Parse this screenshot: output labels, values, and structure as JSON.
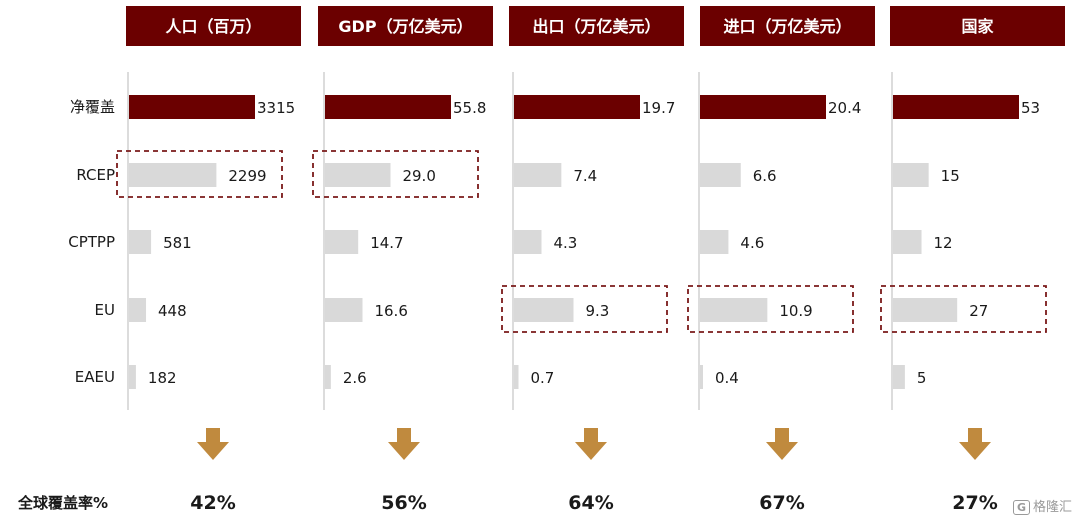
{
  "chart_data": {
    "type": "bar",
    "orientation": "horizontal",
    "categories": [
      "净覆盖",
      "RCEP",
      "CPTPP",
      "EU",
      "EAEU"
    ],
    "highlight_category": "净覆盖",
    "panels": [
      {
        "name": "人口（百万）",
        "values": [
          3315,
          2299,
          581,
          448,
          182
        ],
        "labels": [
          "3315",
          "2299",
          "581",
          "448",
          "182"
        ],
        "boxed": [
          1
        ]
      },
      {
        "name": "GDP（万亿美元）",
        "values": [
          55.8,
          29.0,
          14.7,
          16.6,
          2.6
        ],
        "labels": [
          "55.8",
          "29.0",
          "14.7",
          "16.6",
          "2.6"
        ],
        "boxed": [
          1
        ]
      },
      {
        "name": "出口（万亿美元）",
        "values": [
          19.7,
          7.4,
          4.3,
          9.3,
          0.7
        ],
        "labels": [
          "19.7",
          "7.4",
          "4.3",
          "9.3",
          "0.7"
        ],
        "boxed": [
          3
        ]
      },
      {
        "name": "进口（万亿美元）",
        "values": [
          20.4,
          6.6,
          4.6,
          10.9,
          0.4
        ],
        "labels": [
          "20.4",
          "6.6",
          "4.6",
          "10.9",
          "0.4"
        ],
        "boxed": [
          3
        ]
      },
      {
        "name": "国家",
        "values": [
          53,
          15,
          12,
          27,
          5
        ],
        "labels": [
          "53",
          "15",
          "12",
          "27",
          "5"
        ],
        "boxed": [
          3
        ]
      }
    ],
    "coverage_label": "全球覆盖率%",
    "coverage_values": [
      "42%",
      "56%",
      "64%",
      "67%",
      "27%"
    ],
    "colors": {
      "highlight": "#6b0000",
      "normal": "#d9d9d9",
      "header": "#6b0000",
      "arrow": "#c08a3e",
      "box": "#7a1a1a"
    }
  },
  "watermark": {
    "logo": "G",
    "text": "格隆汇"
  }
}
